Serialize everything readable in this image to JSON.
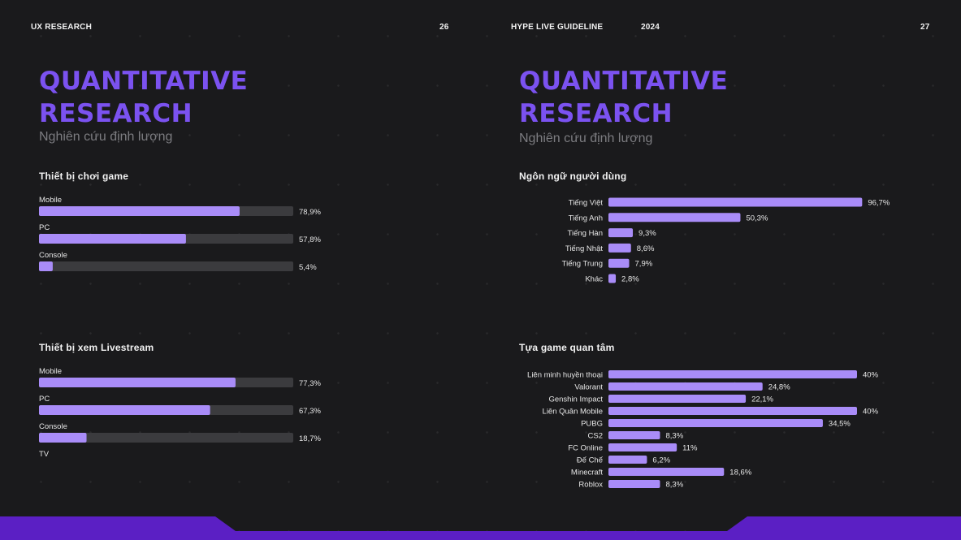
{
  "left_page": {
    "header": "UX RESEARCH",
    "page_number": "26",
    "title_line1": "QUANTITATIVE",
    "title_line2": "RESEARCH",
    "subtitle": "Nghiên cứu định lượng"
  },
  "right_page": {
    "header": "HYPE LIVE GUIDELINE",
    "year": "2024",
    "page_number": "27",
    "title_line1": "QUANTITATIVE",
    "title_line2": "RESEARCH",
    "subtitle": "Nghiên cứu định lượng"
  },
  "colors": {
    "accent": "#7b52f0",
    "bar_fill": "#a98cf8",
    "bar_track": "#3b3b3e",
    "footer": "#5b1fc4"
  },
  "chart_data": [
    {
      "type": "bar",
      "orientation": "horizontal",
      "title": "Thiết bị chơi game",
      "categories": [
        "Mobile",
        "PC",
        "Console"
      ],
      "values": [
        78.9,
        57.8,
        5.4
      ],
      "value_labels": [
        "78,9%",
        "57,8%",
        "5,4%"
      ],
      "xlim": [
        0,
        100
      ]
    },
    {
      "type": "bar",
      "orientation": "horizontal",
      "title": "Thiết bị xem Livestream",
      "categories": [
        "Mobile",
        "PC",
        "Console",
        "TV"
      ],
      "values": [
        77.3,
        67.3,
        18.7,
        null
      ],
      "value_labels": [
        "77,3%",
        "67,3%",
        "18,7%",
        ""
      ],
      "xlim": [
        0,
        100
      ]
    },
    {
      "type": "bar",
      "orientation": "horizontal",
      "title": "Ngôn ngữ người dùng",
      "categories": [
        "Tiếng Việt",
        "Tiếng Anh",
        "Tiếng Hàn",
        "Tiếng Nhật",
        "Tiếng Trung",
        "Khác"
      ],
      "values": [
        96.7,
        50.3,
        9.3,
        8.6,
        7.9,
        2.8
      ],
      "value_labels": [
        "96,7%",
        "50,3%",
        "9,3%",
        "8,6%",
        "7,9%",
        "2,8%"
      ],
      "xlim": [
        0,
        100
      ]
    },
    {
      "type": "bar",
      "orientation": "horizontal",
      "title": "Tựa game quan tâm",
      "categories": [
        "Liên minh huyền thoại",
        "Valorant",
        "Genshin Impact",
        "Liên Quân Mobile",
        "PUBG",
        "CS2",
        "FC Online",
        "Đế Chế",
        "Minecraft",
        "Roblox"
      ],
      "values": [
        40,
        24.8,
        22.1,
        40,
        34.5,
        8.3,
        11,
        6.2,
        18.6,
        8.3
      ],
      "value_labels": [
        "40%",
        "24,8%",
        "22,1%",
        "40%",
        "34,5%",
        "8,3%",
        "11%",
        "6,2%",
        "18,6%",
        "8,3%"
      ],
      "xlim": [
        0,
        40
      ]
    }
  ]
}
